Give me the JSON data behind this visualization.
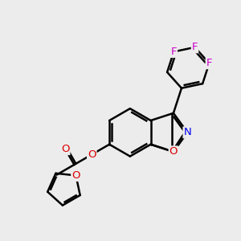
{
  "background_color": "#ececec",
  "bond_color": "#000000",
  "bond_width": 1.8,
  "atom_colors": {
    "F": "#cc00cc",
    "O": "#dd0000",
    "N": "#0000ee",
    "C": "#000000"
  },
  "font_size_atoms": 8.5,
  "figsize": [
    3.0,
    3.0
  ],
  "dpi": 100
}
